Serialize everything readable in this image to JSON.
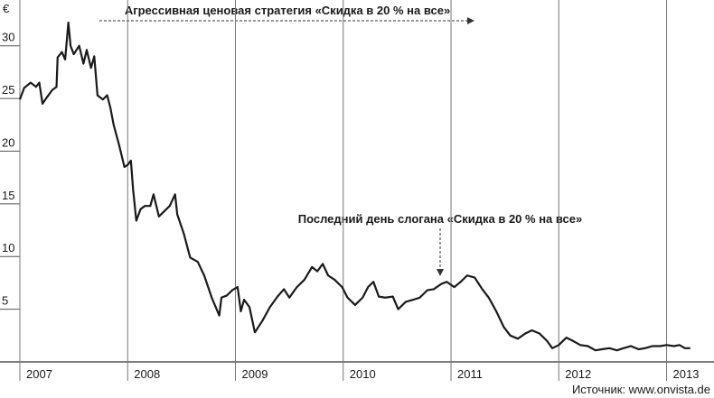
{
  "chart_data": {
    "type": "line",
    "y_label": "€",
    "annotations": [
      "Агрессивная ценовая стратегия «Скидка в 20 % на все»",
      "Последний день слогана «Скидка в 20 % на все»"
    ],
    "source": "Источник: www.onvista.de",
    "color": "#1a1a1a",
    "xlim": [
      2007,
      2013.44
    ],
    "xticks": [
      2007,
      2008,
      2009,
      2010,
      2011,
      2012,
      2013
    ],
    "ylim": [
      0,
      34
    ],
    "yticks": [
      5,
      10,
      15,
      20,
      25,
      30
    ],
    "grid": true,
    "x": [
      2007.0,
      2007.04,
      2007.1,
      2007.15,
      2007.18,
      2007.21,
      2007.25,
      2007.3,
      2007.34,
      2007.35,
      2007.39,
      2007.42,
      2007.45,
      2007.47,
      2007.5,
      2007.55,
      2007.59,
      2007.62,
      2007.66,
      2007.69,
      2007.72,
      2007.77,
      2007.81,
      2007.84,
      2007.87,
      2007.92,
      2007.97,
      2008.0,
      2008.03,
      2008.05,
      2008.08,
      2008.12,
      2008.16,
      2008.21,
      2008.24,
      2008.29,
      2008.33,
      2008.39,
      2008.44,
      2008.46,
      2008.52,
      2008.58,
      2008.65,
      2008.71,
      2008.78,
      2008.85,
      2008.87,
      2008.92,
      2008.97,
      2009.02,
      2009.05,
      2009.08,
      2009.13,
      2009.18,
      2009.25,
      2009.32,
      2009.39,
      2009.45,
      2009.5,
      2009.57,
      2009.64,
      2009.71,
      2009.76,
      2009.81,
      2009.86,
      2009.92,
      2009.99,
      2010.04,
      2010.11,
      2010.18,
      2010.23,
      2010.28,
      2010.33,
      2010.39,
      2010.46,
      2010.51,
      2010.58,
      2010.65,
      2010.71,
      2010.78,
      2010.84,
      2010.91,
      2010.96,
      2011.03,
      2011.09,
      2011.15,
      2011.22,
      2011.29,
      2011.35,
      2011.42,
      2011.49,
      2011.55,
      2011.62,
      2011.69,
      2011.75,
      2011.82,
      2011.89,
      2011.94,
      2012.0,
      2012.07,
      2012.13,
      2012.2,
      2012.27,
      2012.34,
      2012.4,
      2012.47,
      2012.54,
      2012.6,
      2012.67,
      2012.74,
      2012.8,
      2012.87,
      2012.94,
      2013.0,
      2013.07,
      2013.12,
      2013.17,
      2013.22
    ],
    "values": [
      24.9,
      26.0,
      26.5,
      26.1,
      26.5,
      24.5,
      25.1,
      25.8,
      26.1,
      28.9,
      29.4,
      28.7,
      32.2,
      30.0,
      29.2,
      30.0,
      28.3,
      29.6,
      27.9,
      29.0,
      25.3,
      24.9,
      25.3,
      24.1,
      22.5,
      20.6,
      18.5,
      18.7,
      19.1,
      16.4,
      13.4,
      14.5,
      14.8,
      14.8,
      15.9,
      13.8,
      14.2,
      14.8,
      15.9,
      14.0,
      12.2,
      9.9,
      9.5,
      8.2,
      6.1,
      4.4,
      6.1,
      6.3,
      6.8,
      7.1,
      4.8,
      5.9,
      5.2,
      2.8,
      3.9,
      5.2,
      6.2,
      6.9,
      6.1,
      7.1,
      7.8,
      9.0,
      8.6,
      9.3,
      8.2,
      7.8,
      7.1,
      6.1,
      5.4,
      6.1,
      7.1,
      7.6,
      6.2,
      6.1,
      6.2,
      5.0,
      5.7,
      5.9,
      6.1,
      6.8,
      6.9,
      7.4,
      7.6,
      7.1,
      7.6,
      8.2,
      8.0,
      6.9,
      6.1,
      4.8,
      3.3,
      2.5,
      2.2,
      2.7,
      3.0,
      2.7,
      2.0,
      1.3,
      1.6,
      2.3,
      2.0,
      1.6,
      1.5,
      1.1,
      1.2,
      1.3,
      1.1,
      1.3,
      1.5,
      1.2,
      1.3,
      1.5,
      1.5,
      1.6,
      1.5,
      1.6,
      1.3,
      1.3
    ]
  }
}
